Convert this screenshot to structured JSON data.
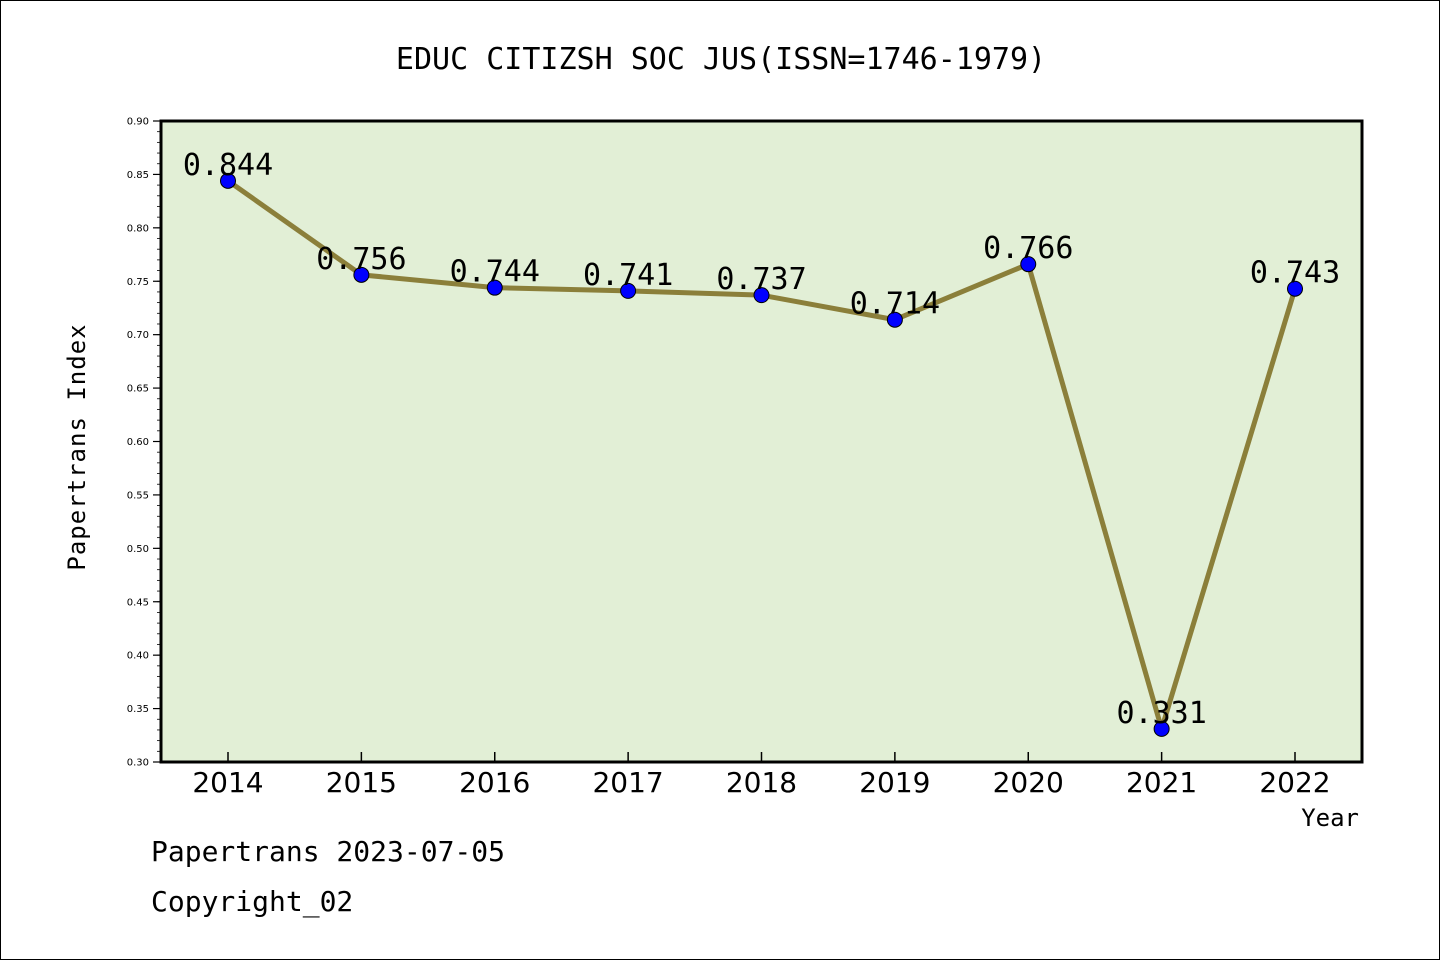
{
  "footer": {
    "line1": "Papertrans 2023-07-05",
    "line2": "Copyright_02"
  },
  "chart_data": {
    "type": "line",
    "title": "EDUC CITIZSH SOC JUS(ISSN=1746-1979)",
    "xlabel": "Year",
    "ylabel": "Papertrans Index",
    "categories": [
      "2014",
      "2015",
      "2016",
      "2017",
      "2018",
      "2019",
      "2020",
      "2021",
      "2022"
    ],
    "series": [
      {
        "values": [
          0.844,
          0.756,
          0.744,
          0.741,
          0.737,
          0.714,
          0.766,
          0.331,
          0.743
        ]
      }
    ],
    "data_labels": [
      "0.844",
      "0.756",
      "0.744",
      "0.741",
      "0.737",
      "0.714",
      "0.766",
      "0.331",
      "0.743"
    ],
    "ylim": [
      0.3,
      0.9
    ],
    "yticks": [
      "0.30",
      "0.35",
      "0.40",
      "0.45",
      "0.50",
      "0.55",
      "0.60",
      "0.65",
      "0.70",
      "0.75",
      "0.80",
      "0.85",
      "0.90"
    ],
    "colors": {
      "plot_background": "#e2efd6",
      "line": "#8b7f3a",
      "marker": "#0000ff"
    },
    "grid": false,
    "legend": false
  }
}
